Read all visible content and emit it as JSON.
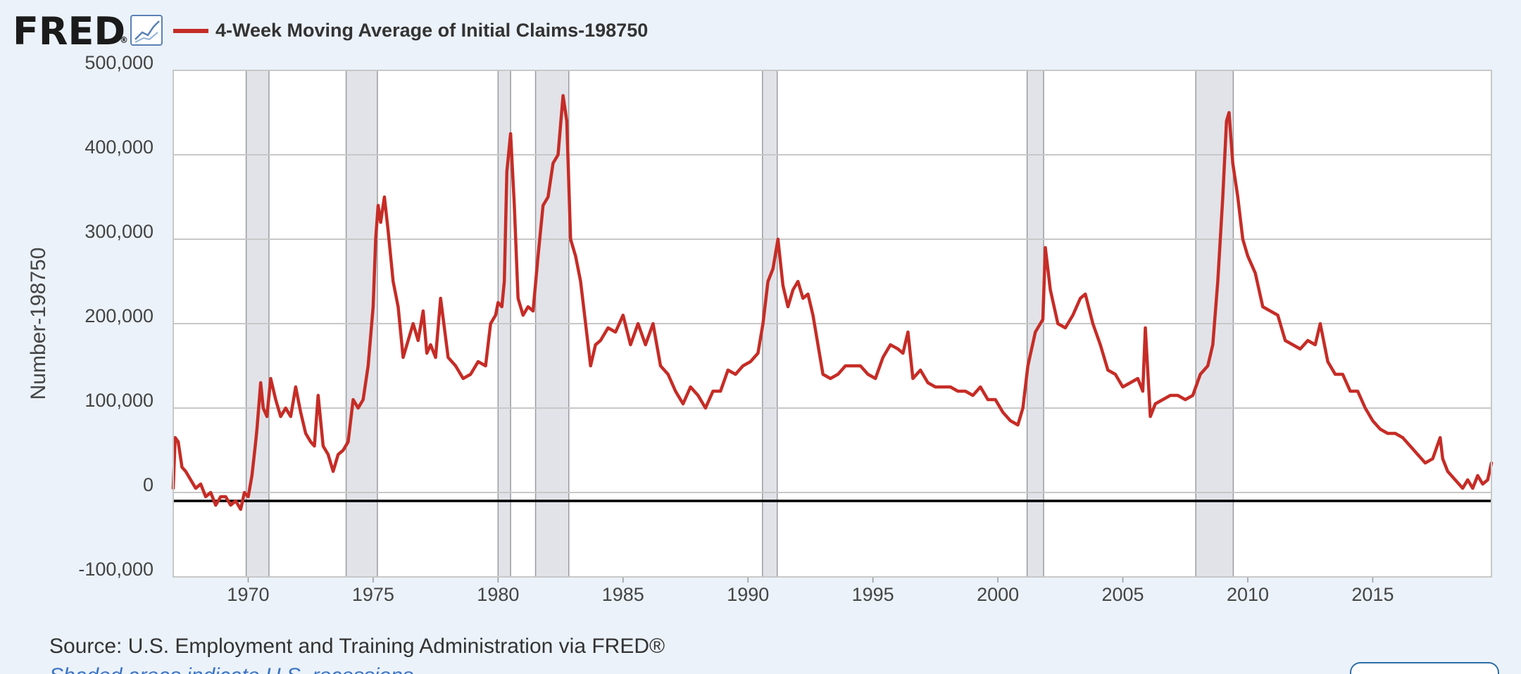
{
  "header": {
    "logo_text": "FRED",
    "logo_mark": "®",
    "chart_icon": "line-chart-icon",
    "legend_label": "4-Week Moving Average of Initial Claims-198750"
  },
  "footer": {
    "source": "Source: U.S. Employment and Training Administration via FRED®",
    "recession_note": "Shaded areas indicate U.S. recessions"
  },
  "colors": {
    "background": "#EBF2FA",
    "plot_background": "#FFFFFF",
    "series": "#C62C26",
    "grid": "#C8C8C8",
    "recession": "#E1E3E8",
    "zero_line": "#000000",
    "text": "#444444",
    "logo": "#1B1B1B",
    "logo_icon": "#5A82B4"
  },
  "chart_data": {
    "type": "line",
    "title": "",
    "xlabel": "",
    "ylabel": "Number-198750",
    "xlim": [
      1967.0,
      2019.75
    ],
    "ylim": [
      -100000,
      500000
    ],
    "x_ticks": [
      1970,
      1975,
      1980,
      1985,
      1990,
      1995,
      2000,
      2005,
      2010,
      2015
    ],
    "x_tick_labels": [
      "1970",
      "1975",
      "1980",
      "1985",
      "1990",
      "1995",
      "2000",
      "2005",
      "2010",
      "2015"
    ],
    "y_ticks": [
      -100000,
      0,
      100000,
      200000,
      300000,
      400000,
      500000
    ],
    "y_tick_labels": [
      "-100,000",
      "0",
      "100,000",
      "200,000",
      "300,000",
      "400,000",
      "500,000"
    ],
    "grid": true,
    "legend_position": "top-left",
    "recessions": [
      [
        1969.92,
        1970.83
      ],
      [
        1973.92,
        1975.17
      ],
      [
        1980.0,
        1980.5
      ],
      [
        1981.5,
        1982.83
      ],
      [
        1990.58,
        1991.17
      ],
      [
        2001.17,
        2001.83
      ],
      [
        2007.92,
        2009.42
      ]
    ],
    "series": [
      {
        "name": "4-Week Moving Average of Initial Claims-198750",
        "x": [
          1967.0,
          1967.08,
          1967.2,
          1967.35,
          1967.5,
          1967.7,
          1967.9,
          1968.1,
          1968.3,
          1968.5,
          1968.7,
          1968.9,
          1969.1,
          1969.3,
          1969.5,
          1969.7,
          1969.85,
          1970.0,
          1970.15,
          1970.3,
          1970.35,
          1970.5,
          1970.6,
          1970.75,
          1970.9,
          1971.1,
          1971.3,
          1971.5,
          1971.7,
          1971.9,
          1972.1,
          1972.3,
          1972.5,
          1972.65,
          1972.8,
          1973.0,
          1973.2,
          1973.4,
          1973.6,
          1973.8,
          1974.0,
          1974.2,
          1974.4,
          1974.6,
          1974.8,
          1975.0,
          1975.1,
          1975.2,
          1975.3,
          1975.45,
          1975.6,
          1975.8,
          1976.0,
          1976.2,
          1976.4,
          1976.6,
          1976.8,
          1977.0,
          1977.15,
          1977.3,
          1977.5,
          1977.7,
          1978.0,
          1978.3,
          1978.6,
          1978.9,
          1979.2,
          1979.5,
          1979.7,
          1979.9,
          1980.0,
          1980.15,
          1980.25,
          1980.35,
          1980.5,
          1980.65,
          1980.8,
          1981.0,
          1981.2,
          1981.4,
          1981.6,
          1981.8,
          1982.0,
          1982.2,
          1982.4,
          1982.6,
          1982.75,
          1982.9,
          1983.1,
          1983.3,
          1983.5,
          1983.7,
          1983.9,
          1984.1,
          1984.4,
          1984.7,
          1985.0,
          1985.3,
          1985.6,
          1985.9,
          1986.2,
          1986.5,
          1986.8,
          1987.1,
          1987.4,
          1987.7,
          1988.0,
          1988.3,
          1988.6,
          1988.9,
          1989.2,
          1989.5,
          1989.8,
          1990.1,
          1990.4,
          1990.6,
          1990.8,
          1991.0,
          1991.2,
          1991.4,
          1991.6,
          1991.8,
          1992.0,
          1992.2,
          1992.4,
          1992.6,
          1992.8,
          1993.0,
          1993.3,
          1993.6,
          1993.9,
          1994.2,
          1994.5,
          1994.8,
          1995.1,
          1995.4,
          1995.7,
          1996.0,
          1996.2,
          1996.4,
          1996.6,
          1996.9,
          1997.2,
          1997.5,
          1997.8,
          1998.1,
          1998.4,
          1998.7,
          1999.0,
          1999.3,
          1999.6,
          1999.9,
          2000.2,
          2000.5,
          2000.8,
          2001.0,
          2001.2,
          2001.5,
          2001.7,
          2001.8,
          2001.9,
          2002.1,
          2002.4,
          2002.7,
          2003.0,
          2003.3,
          2003.5,
          2003.8,
          2004.1,
          2004.4,
          2004.7,
          2005.0,
          2005.3,
          2005.6,
          2005.8,
          2005.9,
          2006.1,
          2006.3,
          2006.6,
          2006.9,
          2007.2,
          2007.5,
          2007.8,
          2008.1,
          2008.4,
          2008.6,
          2008.8,
          2009.0,
          2009.15,
          2009.25,
          2009.4,
          2009.6,
          2009.8,
          2010.0,
          2010.3,
          2010.6,
          2010.9,
          2011.2,
          2011.5,
          2011.8,
          2012.1,
          2012.4,
          2012.7,
          2012.9,
          2013.2,
          2013.5,
          2013.8,
          2014.1,
          2014.4,
          2014.7,
          2015.0,
          2015.3,
          2015.6,
          2015.9,
          2016.2,
          2016.5,
          2016.8,
          2017.1,
          2017.4,
          2017.7,
          2017.8,
          2018.0,
          2018.3,
          2018.6,
          2018.8,
          2019.0,
          2019.2,
          2019.4,
          2019.6,
          2019.75
        ],
        "values": [
          5000,
          65000,
          60000,
          30000,
          25000,
          15000,
          5000,
          10000,
          -5000,
          0,
          -15000,
          -5000,
          -5000,
          -15000,
          -10000,
          -20000,
          0,
          -5000,
          20000,
          60000,
          75000,
          130000,
          100000,
          90000,
          135000,
          110000,
          90000,
          100000,
          90000,
          125000,
          95000,
          70000,
          60000,
          55000,
          115000,
          55000,
          45000,
          25000,
          45000,
          50000,
          60000,
          110000,
          100000,
          110000,
          150000,
          220000,
          300000,
          340000,
          320000,
          350000,
          310000,
          250000,
          220000,
          160000,
          180000,
          200000,
          180000,
          215000,
          165000,
          175000,
          160000,
          230000,
          160000,
          150000,
          135000,
          140000,
          155000,
          150000,
          200000,
          210000,
          225000,
          220000,
          250000,
          380000,
          425000,
          340000,
          230000,
          210000,
          220000,
          215000,
          280000,
          340000,
          350000,
          390000,
          400000,
          470000,
          440000,
          300000,
          280000,
          250000,
          200000,
          150000,
          175000,
          180000,
          195000,
          190000,
          210000,
          175000,
          200000,
          175000,
          200000,
          150000,
          140000,
          120000,
          105000,
          125000,
          115000,
          100000,
          120000,
          120000,
          145000,
          140000,
          150000,
          155000,
          165000,
          200000,
          250000,
          265000,
          300000,
          245000,
          220000,
          240000,
          250000,
          230000,
          235000,
          210000,
          175000,
          140000,
          135000,
          140000,
          150000,
          150000,
          150000,
          140000,
          135000,
          160000,
          175000,
          170000,
          165000,
          190000,
          135000,
          145000,
          130000,
          125000,
          125000,
          125000,
          120000,
          120000,
          115000,
          125000,
          110000,
          110000,
          95000,
          85000,
          80000,
          100000,
          150000,
          190000,
          200000,
          205000,
          290000,
          240000,
          200000,
          195000,
          210000,
          230000,
          235000,
          200000,
          175000,
          145000,
          140000,
          125000,
          130000,
          135000,
          120000,
          195000,
          90000,
          105000,
          110000,
          115000,
          115000,
          110000,
          115000,
          140000,
          150000,
          175000,
          250000,
          350000,
          440000,
          450000,
          390000,
          350000,
          300000,
          280000,
          260000,
          220000,
          215000,
          210000,
          180000,
          175000,
          170000,
          180000,
          175000,
          200000,
          155000,
          140000,
          140000,
          120000,
          120000,
          100000,
          85000,
          75000,
          70000,
          70000,
          65000,
          55000,
          45000,
          35000,
          40000,
          65000,
          40000,
          25000,
          15000,
          5000,
          15000,
          5000,
          20000,
          10000,
          15000,
          35000
        ]
      }
    ]
  }
}
